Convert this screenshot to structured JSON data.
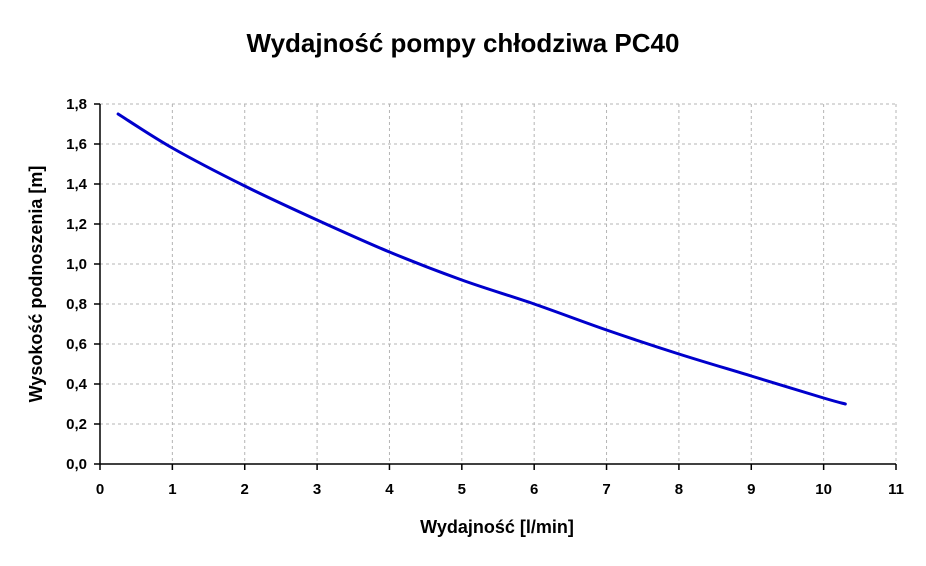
{
  "chart_data": {
    "type": "line",
    "title": "Wydajność pompy chłodziwa PC40",
    "xlabel": "Wydajność [l/min]",
    "ylabel": "Wysokość podnoszenia [m]",
    "xlim": [
      0,
      11
    ],
    "ylim": [
      0,
      1.8
    ],
    "x_ticks": [
      "0",
      "1",
      "2",
      "3",
      "4",
      "5",
      "6",
      "7",
      "8",
      "9",
      "10",
      "11"
    ],
    "y_ticks": [
      "0,0",
      "0,2",
      "0,4",
      "0,6",
      "0,8",
      "1,0",
      "1,2",
      "1,4",
      "1,6",
      "1,8"
    ],
    "grid": true,
    "legend": "none",
    "series": [
      {
        "color": "#0000cc",
        "x": [
          0.25,
          1,
          2,
          3,
          4,
          5,
          6,
          7,
          8,
          9,
          10,
          10.3
        ],
        "y": [
          1.75,
          1.58,
          1.39,
          1.22,
          1.06,
          0.92,
          0.8,
          0.67,
          0.55,
          0.44,
          0.33,
          0.3
        ]
      }
    ]
  }
}
